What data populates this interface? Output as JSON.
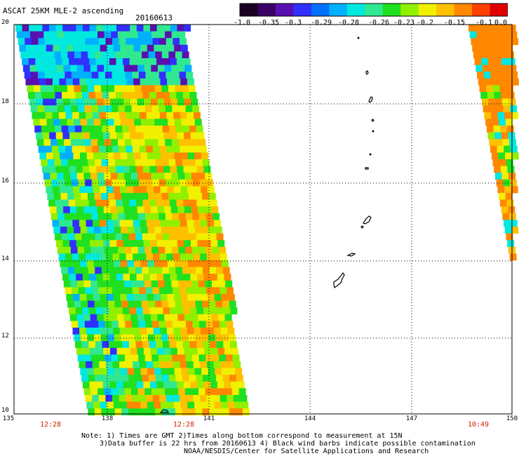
{
  "title": "ASCAT 25KM MLE-2 ascending",
  "date": "20160613",
  "colorbar": {
    "ticks": [
      "-1.0",
      "-0.35",
      "-0.3",
      "-0.29",
      "-0.28",
      "-0.26",
      "-0.23",
      "-0.2",
      "-0.15",
      "-0.1",
      "0.0"
    ],
    "colors": [
      "#1a0024",
      "#3a0066",
      "#5a10b0",
      "#3030ff",
      "#0070ff",
      "#00b0ff",
      "#00e8e0",
      "#30e890",
      "#20e020",
      "#90f000",
      "#f0f000",
      "#ffc000",
      "#ff8800",
      "#ff4000",
      "#e00000"
    ]
  },
  "map": {
    "lon_labels": [
      "135",
      "138",
      "141",
      "144",
      "147",
      "150"
    ],
    "lat_labels": [
      "20",
      "18",
      "16",
      "14",
      "12",
      "10"
    ],
    "lon_range": [
      135,
      150
    ],
    "lat_range": [
      10,
      20
    ]
  },
  "times": {
    "t1": "12:28",
    "t2": "12:28",
    "t3": "10:49"
  },
  "notes": {
    "line1": "Note: 1) Times are GMT 2)Times along bottom correspond to measurement at 15N",
    "line2": "3)Data buffer is 22 hrs from 20160613 4) Black wind barbs indicate possible contamination",
    "line3": "NOAA/NESDIS/Center for Satellite Applications and Research"
  }
}
